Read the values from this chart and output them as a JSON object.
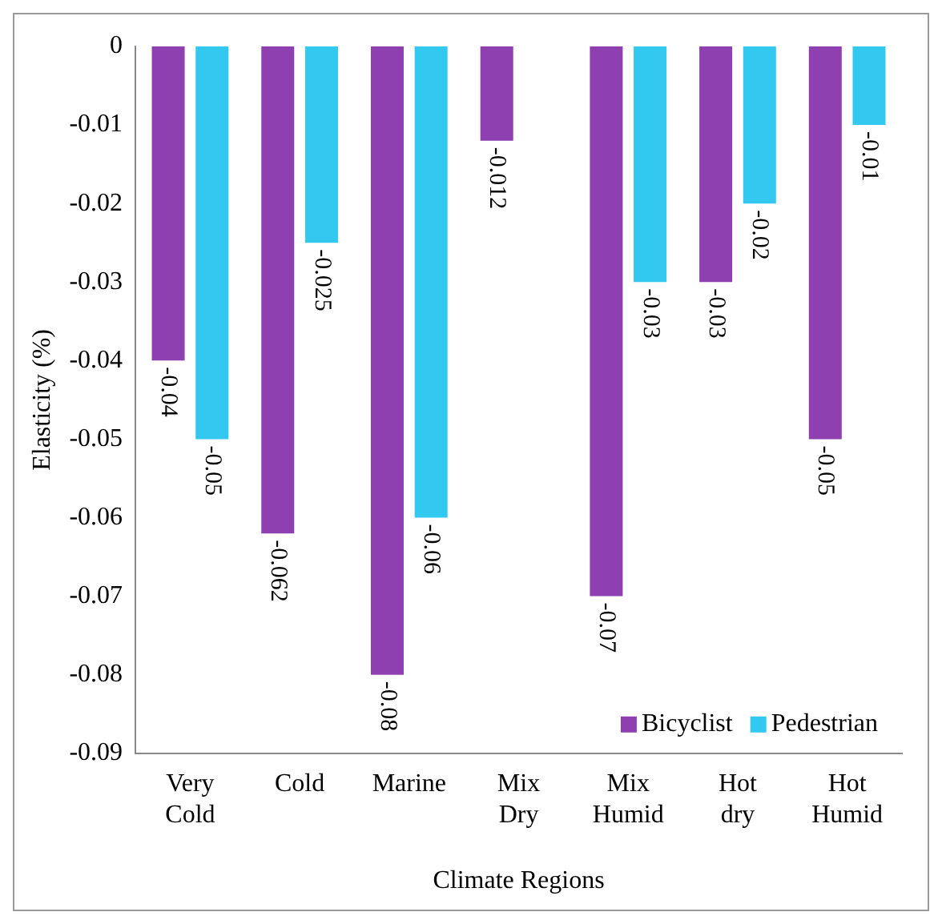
{
  "chart_data": {
    "type": "bar",
    "xlabel": "Climate Regions",
    "ylabel": "Elasticity (%)",
    "categories": [
      "Very Cold",
      "Cold",
      "Marine",
      "Mix Dry",
      "Mix Humid",
      "Hot dry",
      "Hot Humid"
    ],
    "series": [
      {
        "name": "Bicyclist",
        "color": "#8e3fb0",
        "values": [
          -0.04,
          -0.062,
          -0.08,
          -0.012,
          -0.07,
          -0.03,
          -0.05
        ]
      },
      {
        "name": "Pedestrian",
        "color": "#33c8f0",
        "values": [
          -0.05,
          -0.025,
          -0.06,
          null,
          -0.03,
          -0.02,
          -0.01
        ]
      }
    ],
    "ylim": [
      -0.09,
      0
    ],
    "yticks": [
      -0.09,
      -0.08,
      -0.07,
      -0.06,
      -0.05,
      -0.04,
      -0.03,
      -0.02,
      -0.01,
      0
    ],
    "grid": false,
    "legend": "bottom right",
    "data_labels": true
  }
}
